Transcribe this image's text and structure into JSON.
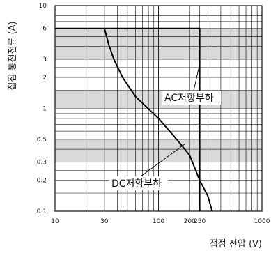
{
  "chart_data": {
    "type": "line",
    "title": "",
    "xlabel": "접점 전압 (V)",
    "ylabel": "접점 통전전류 (A)",
    "x_scale": "log",
    "y_scale": "log",
    "xlim": [
      10,
      1000
    ],
    "ylim": [
      0.1,
      10
    ],
    "x_ticks": [
      10,
      30,
      100,
      200,
      250,
      1000
    ],
    "x_tick_labels": [
      "10",
      "30",
      "100",
      "200",
      "250",
      "1000"
    ],
    "y_ticks": [
      0.1,
      0.2,
      0.3,
      0.5,
      1,
      2,
      3,
      6,
      10
    ],
    "y_tick_labels": [
      "0.1",
      "0.2",
      "0.3",
      "0.5",
      "1",
      "2",
      "3",
      "6",
      "10"
    ],
    "grid": true,
    "series": [
      {
        "name": "AC저항부하",
        "points": [
          [
            10,
            6
          ],
          [
            250,
            6
          ],
          [
            250,
            0.1
          ]
        ]
      },
      {
        "name": "DC저항부하",
        "points": [
          [
            30,
            6
          ],
          [
            33,
            4.2
          ],
          [
            37,
            3.0
          ],
          [
            45,
            2.0
          ],
          [
            60,
            1.3
          ],
          [
            100,
            0.8
          ],
          [
            150,
            0.5
          ],
          [
            200,
            0.35
          ],
          [
            250,
            0.2
          ],
          [
            300,
            0.14
          ],
          [
            330,
            0.1
          ]
        ]
      }
    ],
    "annotations": [
      {
        "text": "AC저항부하"
      },
      {
        "text": "DC저항부하"
      }
    ]
  }
}
